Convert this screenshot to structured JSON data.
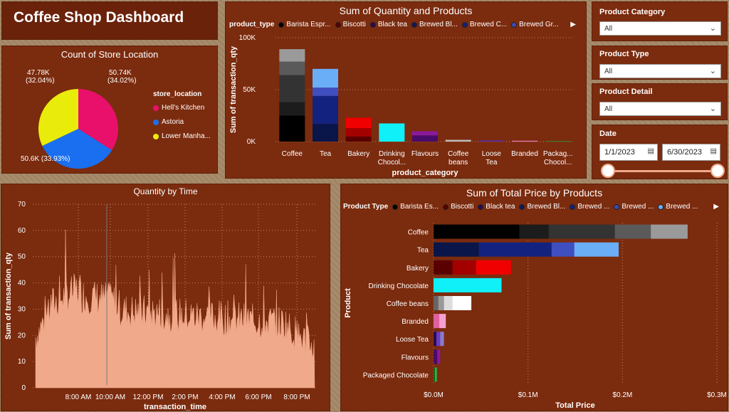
{
  "dashboard_title": "Coffee Shop Dashboard",
  "colors": {
    "panel": "#7b2b0e",
    "accent": "#f0a98a"
  },
  "slicers": {
    "product_category": {
      "label": "Product Category",
      "value": "All"
    },
    "product_type": {
      "label": "Product Type",
      "value": "All"
    },
    "product_detail": {
      "label": "Product Detail",
      "value": "All"
    },
    "date": {
      "label": "Date",
      "start": "1/1/2023",
      "end": "6/30/2023"
    }
  },
  "chart_data": [
    {
      "id": "pie",
      "type": "pie",
      "title": "Count of Store Location",
      "legend_title": "store_location",
      "slices": [
        {
          "name": "Hell's Kitchen",
          "value": 50.74,
          "label": "50.74K",
          "pct": "(34.02%)",
          "color": "#e8106a"
        },
        {
          "name": "Astoria",
          "value": 50.6,
          "label": "50.6K",
          "pct": "(33.93%)",
          "color": "#1a6ff0"
        },
        {
          "name": "Lower Manha...",
          "value": 47.78,
          "label": "47.78K",
          "pct": "(32.04%)",
          "color": "#e9ec0b"
        }
      ]
    },
    {
      "id": "stacked_col",
      "type": "bar",
      "title": "Sum of Quantity and Products",
      "legend_title": "product_type",
      "legend": [
        {
          "name": "Barista Espr...",
          "color": "#000000"
        },
        {
          "name": "Biscotti",
          "color": "#5a0000"
        },
        {
          "name": "Black tea",
          "color": "#2a0a50"
        },
        {
          "name": "Brewed Bl...",
          "color": "#0f1a5a"
        },
        {
          "name": "Brewed C...",
          "color": "#14207a"
        },
        {
          "name": "Brewed Gr...",
          "color": "#3c4ab8"
        }
      ],
      "xlabel": "product_category",
      "ylabel": "Sum of transaction_qty",
      "ylim": [
        0,
        100000
      ],
      "yticks": [
        "0K",
        "50K",
        "100K"
      ],
      "categories": [
        "Coffee",
        "Tea",
        "Bakery",
        "Drinking Chocol...",
        "Flavours",
        "Coffee beans",
        "Loose Tea",
        "Branded",
        "Packag... Chocol..."
      ],
      "stacks": [
        [
          {
            "v": 25000,
            "c": "#000000"
          },
          {
            "v": 13000,
            "c": "#1c1c1c"
          },
          {
            "v": 26000,
            "c": "#333333"
          },
          {
            "v": 13000,
            "c": "#5a5a5a"
          },
          {
            "v": 12000,
            "c": "#9a9a9a"
          }
        ],
        [
          {
            "v": 17000,
            "c": "#0a154a"
          },
          {
            "v": 27000,
            "c": "#13227e"
          },
          {
            "v": 8000,
            "c": "#3f4fc0"
          },
          {
            "v": 18000,
            "c": "#6aaef8"
          }
        ],
        [
          {
            "v": 5000,
            "c": "#5a0000"
          },
          {
            "v": 8000,
            "c": "#a30000"
          },
          {
            "v": 10000,
            "c": "#f00000"
          }
        ],
        [
          {
            "v": 17500,
            "c": "#0ff0f8"
          }
        ],
        [
          {
            "v": 6000,
            "c": "#4a0a6a"
          },
          {
            "v": 4000,
            "c": "#8a1a9a"
          }
        ],
        [
          {
            "v": 1700,
            "c": "#bbbbbb"
          }
        ],
        [
          {
            "v": 1200,
            "c": "#5a2aa0"
          }
        ],
        [
          {
            "v": 800,
            "c": "#f080c0"
          }
        ],
        [
          {
            "v": 500,
            "c": "#1a9a3a"
          }
        ]
      ]
    },
    {
      "id": "area",
      "type": "area",
      "title": "Quantity by Time",
      "xlabel": "transaction_time",
      "ylabel": "Sum of transaction_qty",
      "ylim": [
        0,
        70
      ],
      "yticks": [
        "0",
        "10",
        "20",
        "30",
        "40",
        "50",
        "60",
        "70"
      ],
      "xticks": [
        "8:00 AM",
        "10:00 AM",
        "12:00 PM",
        "2:00 PM",
        "4:00 PM",
        "6:00 PM",
        "8:00 PM"
      ],
      "color": "#f0a98a"
    },
    {
      "id": "hbar",
      "type": "bar",
      "title": "Sum of Total Price by Products",
      "legend_title": "Product Type",
      "legend": [
        {
          "name": "Barista Es...",
          "color": "#000000"
        },
        {
          "name": "Biscotti",
          "color": "#5a0000"
        },
        {
          "name": "Black tea",
          "color": "#2a0a50"
        },
        {
          "name": "Brewed Bl...",
          "color": "#0f1a5a"
        },
        {
          "name": "Brewed ...",
          "color": "#14207a"
        },
        {
          "name": "Brewed ...",
          "color": "#3c4ab8"
        },
        {
          "name": "Brewed ...",
          "color": "#6aaef8"
        }
      ],
      "xlabel": "Total Price",
      "ylabel": "Product",
      "xlim": [
        0,
        300000
      ],
      "xticks": [
        "$0.0M",
        "$0.1M",
        "$0.2M",
        "$0.3M"
      ],
      "categories": [
        "Coffee",
        "Tea",
        "Bakery",
        "Drinking Chocolate",
        "Coffee beans",
        "Branded",
        "Loose Tea",
        "Flavours",
        "Packaged Chocolate"
      ],
      "stacks": [
        [
          {
            "v": 91000,
            "c": "#000000"
          },
          {
            "v": 31000,
            "c": "#1c1c1c"
          },
          {
            "v": 70000,
            "c": "#333333"
          },
          {
            "v": 38000,
            "c": "#5a5a5a"
          },
          {
            "v": 39000,
            "c": "#9a9a9a"
          }
        ],
        [
          {
            "v": 48000,
            "c": "#0a154a"
          },
          {
            "v": 77000,
            "c": "#13227e"
          },
          {
            "v": 24000,
            "c": "#3f4fc0"
          },
          {
            "v": 47000,
            "c": "#6aaef8"
          }
        ],
        [
          {
            "v": 20000,
            "c": "#5a0000"
          },
          {
            "v": 25000,
            "c": "#a30000"
          },
          {
            "v": 37000,
            "c": "#f00000"
          }
        ],
        [
          {
            "v": 72000,
            "c": "#0ff0f8"
          }
        ],
        [
          {
            "v": 5000,
            "c": "#666666"
          },
          {
            "v": 6000,
            "c": "#999999"
          },
          {
            "v": 9000,
            "c": "#dddddd"
          },
          {
            "v": 20000,
            "c": "#ffffff"
          }
        ],
        [
          {
            "v": 6000,
            "c": "#e060a0"
          },
          {
            "v": 7000,
            "c": "#f4a0d0"
          }
        ],
        [
          {
            "v": 3000,
            "c": "#2a0a50"
          },
          {
            "v": 4000,
            "c": "#6a3ac0"
          },
          {
            "v": 4000,
            "c": "#8a7ad0"
          }
        ],
        [
          {
            "v": 4000,
            "c": "#4a0a6a"
          },
          {
            "v": 3000,
            "c": "#8a1a9a"
          }
        ],
        [
          {
            "v": 1500,
            "c": "#0a6a1a"
          },
          {
            "v": 2000,
            "c": "#3ab04a"
          }
        ]
      ]
    }
  ]
}
